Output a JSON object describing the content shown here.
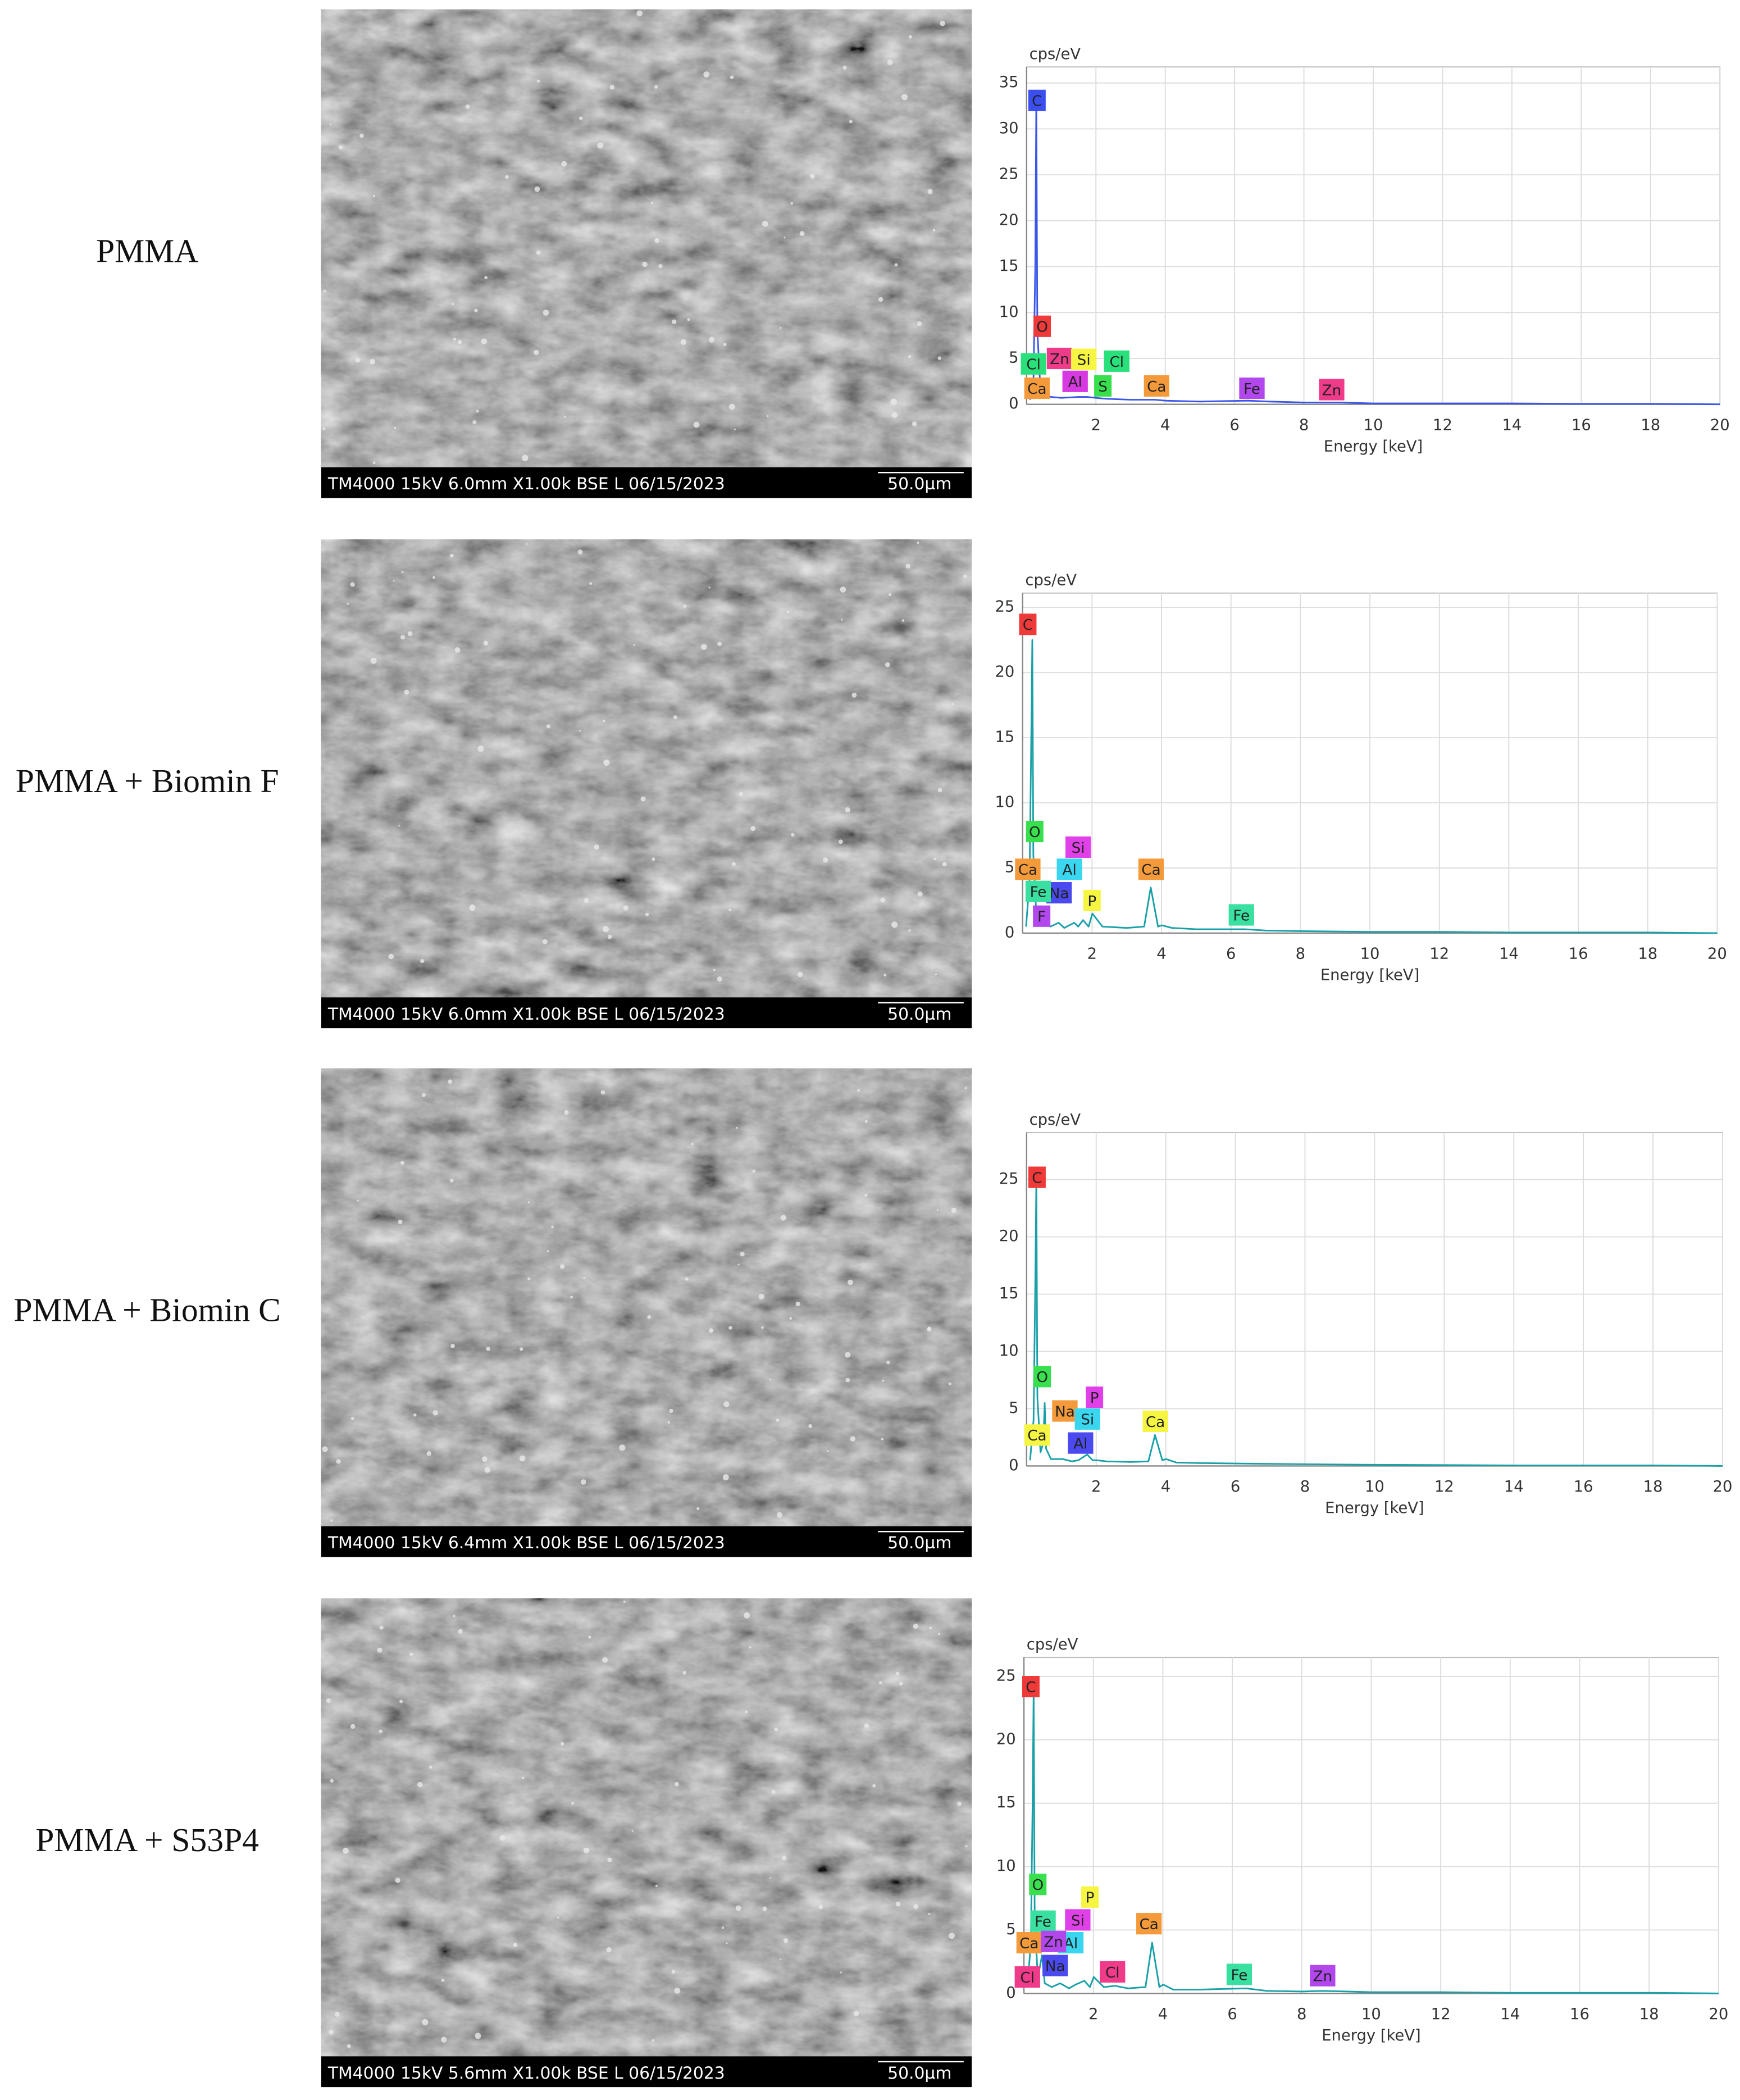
{
  "rows": [
    {
      "label": "PMMA",
      "sem_info": "TM4000 15kV 6.0mm X1.00k BSE L 06/15/2023",
      "scale": "50.0µm"
    },
    {
      "label": "PMMA + Biomin F",
      "sem_info": "TM4000 15kV 6.0mm X1.00k BSE L 06/15/2023",
      "scale": "50.0µm"
    },
    {
      "label": "PMMA + Biomin C",
      "sem_info": "TM4000 15kV 6.4mm X1.00k BSE L 06/15/2023",
      "scale": "50.0µm"
    },
    {
      "label": "PMMA + S53P4",
      "sem_info": "TM4000 15kV 5.6mm X1.00k BSE L 06/15/2023",
      "scale": "50.0µm"
    }
  ],
  "chart_data": [
    {
      "type": "line",
      "y_label": "cps/eV",
      "x_label": "Energy [keV]",
      "xlim": [
        0,
        20
      ],
      "xticks": [
        2,
        4,
        6,
        8,
        10,
        12,
        14,
        16,
        18,
        20
      ],
      "ylim": [
        0,
        36.75
      ],
      "yticks": [
        0,
        5,
        10,
        15,
        20,
        25,
        30,
        35
      ],
      "grid": true,
      "x": [
        0.1,
        0.2,
        0.25,
        0.28,
        0.31,
        0.4,
        0.5,
        0.53,
        0.57,
        0.7,
        1.0,
        1.49,
        1.74,
        2.0,
        2.3,
        3.0,
        3.7,
        4.0,
        5,
        6.4,
        7,
        8,
        9,
        10,
        12,
        14,
        16,
        18,
        20
      ],
      "series": [
        {
          "color": "#3a55e8",
          "values": [
            0.5,
            3,
            15,
            33,
            8,
            1.5,
            1,
            1.5,
            1,
            0.8,
            0.7,
            0.8,
            0.8,
            0.7,
            0.6,
            0.5,
            0.5,
            0.4,
            0.3,
            0.4,
            0.3,
            0.2,
            0.2,
            0.1,
            0.1,
            0.1,
            0.05,
            0.05,
            0
          ]
        }
      ],
      "peak_labels": [
        {
          "label": "C",
          "x": 0.3,
          "y": 33.1,
          "color": "#3b4ff0"
        },
        {
          "label": "O",
          "x": 0.45,
          "y": 8.5,
          "color": "#f03a3a"
        },
        {
          "label": "Cl",
          "x": 0.2,
          "y": 4.4,
          "color": "#29e07a"
        },
        {
          "label": "Zn",
          "x": 0.95,
          "y": 5.0,
          "color": "#f03a8a"
        },
        {
          "label": "Si",
          "x": 1.65,
          "y": 4.9,
          "color": "#f5f542"
        },
        {
          "label": "Cl",
          "x": 2.6,
          "y": 4.7,
          "color": "#29e07a"
        },
        {
          "label": "Al",
          "x": 1.4,
          "y": 2.5,
          "color": "#d63ae0"
        },
        {
          "label": "S",
          "x": 2.2,
          "y": 2.0,
          "color": "#37e04c"
        },
        {
          "label": "Ca",
          "x": 0.3,
          "y": 1.75,
          "color": "#f59a3a"
        },
        {
          "label": "Ca",
          "x": 3.75,
          "y": 2.0,
          "color": "#f59a3a"
        },
        {
          "label": "Fe",
          "x": 6.5,
          "y": 1.75,
          "color": "#b347ee"
        },
        {
          "label": "Zn",
          "x": 8.8,
          "y": 1.6,
          "color": "#f03a8a"
        }
      ]
    },
    {
      "type": "line",
      "y_label": "cps/eV",
      "x_label": "Energy [keV]",
      "xlim": [
        0,
        20
      ],
      "xticks": [
        2,
        4,
        6,
        8,
        10,
        12,
        14,
        16,
        18,
        20
      ],
      "ylim": [
        0,
        26.1
      ],
      "yticks": [
        0,
        5,
        10,
        15,
        20,
        25
      ],
      "grid": true,
      "x": [
        0.1,
        0.2,
        0.25,
        0.28,
        0.31,
        0.4,
        0.52,
        0.6,
        0.68,
        0.8,
        1.04,
        1.2,
        1.49,
        1.6,
        1.74,
        1.9,
        2.01,
        2.3,
        3.0,
        3.5,
        3.69,
        3.9,
        4.01,
        4.3,
        5,
        6.4,
        7,
        8,
        10,
        12,
        14,
        16,
        18,
        20
      ],
      "series": [
        {
          "color": "#18a0a8",
          "values": [
            0.5,
            4,
            15,
            22.5,
            6,
            1.2,
            2,
            0.8,
            0.9,
            0.5,
            0.8,
            0.4,
            0.8,
            0.5,
            1.0,
            0.5,
            1.5,
            0.5,
            0.4,
            0.5,
            3.5,
            0.5,
            0.6,
            0.4,
            0.3,
            0.3,
            0.2,
            0.15,
            0.1,
            0.1,
            0.05,
            0.05,
            0.05,
            0
          ]
        }
      ],
      "peak_labels": [
        {
          "label": "C",
          "x": 0.15,
          "y": 23.7,
          "color": "#f03a3a"
        },
        {
          "label": "O",
          "x": 0.35,
          "y": 7.8,
          "color": "#37e04c"
        },
        {
          "label": "Ca",
          "x": 0.15,
          "y": 4.9,
          "color": "#f59a3a"
        },
        {
          "label": "Si",
          "x": 1.6,
          "y": 6.6,
          "color": "#e040e8"
        },
        {
          "label": "Al",
          "x": 1.35,
          "y": 4.9,
          "color": "#3ad6f0"
        },
        {
          "label": "Na",
          "x": 1.05,
          "y": 3.1,
          "color": "#4a4af0"
        },
        {
          "label": "Fe",
          "x": 0.45,
          "y": 3.2,
          "color": "#3ae0a0"
        },
        {
          "label": "P",
          "x": 2.0,
          "y": 2.5,
          "color": "#f5f542"
        },
        {
          "label": "F",
          "x": 0.55,
          "y": 1.3,
          "color": "#b347ee"
        },
        {
          "label": "Ca",
          "x": 3.7,
          "y": 4.9,
          "color": "#f59a3a"
        },
        {
          "label": "Fe",
          "x": 6.3,
          "y": 1.4,
          "color": "#3ae0a0"
        }
      ]
    },
    {
      "type": "line",
      "y_label": "cps/eV",
      "x_label": "Energy [keV]",
      "xlim": [
        0,
        20
      ],
      "xticks": [
        2,
        4,
        6,
        8,
        10,
        12,
        14,
        16,
        18,
        20
      ],
      "ylim": [
        0,
        29.1
      ],
      "yticks": [
        0,
        5,
        10,
        15,
        20,
        25
      ],
      "grid": true,
      "x": [
        0.1,
        0.2,
        0.25,
        0.28,
        0.31,
        0.4,
        0.48,
        0.52,
        0.56,
        0.7,
        1.04,
        1.3,
        1.49,
        1.74,
        1.9,
        2.01,
        2.3,
        3.0,
        3.5,
        3.69,
        3.9,
        4.01,
        4.3,
        5,
        6.4,
        8,
        10,
        12,
        14,
        16,
        18,
        20
      ],
      "series": [
        {
          "color": "#18a0a8",
          "values": [
            0.5,
            4,
            16,
            25,
            6,
            1.2,
            2,
            5.5,
            1.5,
            0.6,
            0.6,
            0.4,
            0.5,
            1.0,
            0.5,
            0.5,
            0.4,
            0.35,
            0.4,
            2.7,
            0.5,
            0.6,
            0.3,
            0.25,
            0.2,
            0.15,
            0.1,
            0.08,
            0.05,
            0.05,
            0.05,
            0
          ]
        }
      ],
      "peak_labels": [
        {
          "label": "C",
          "x": 0.3,
          "y": 25.2,
          "color": "#f03a3a"
        },
        {
          "label": "O",
          "x": 0.45,
          "y": 7.8,
          "color": "#37e04c"
        },
        {
          "label": "Na",
          "x": 1.1,
          "y": 4.8,
          "color": "#f59a3a"
        },
        {
          "label": "P",
          "x": 1.95,
          "y": 6.0,
          "color": "#e040e8"
        },
        {
          "label": "Si",
          "x": 1.75,
          "y": 4.1,
          "color": "#3ad6f0"
        },
        {
          "label": "Ca",
          "x": 0.3,
          "y": 2.7,
          "color": "#f5f542"
        },
        {
          "label": "Al",
          "x": 1.55,
          "y": 2.0,
          "color": "#4a4af0"
        },
        {
          "label": "Ca",
          "x": 3.7,
          "y": 3.9,
          "color": "#f5f542"
        }
      ]
    },
    {
      "type": "line",
      "y_label": "cps/eV",
      "x_label": "Energy [keV]",
      "xlim": [
        0,
        20
      ],
      "xticks": [
        2,
        4,
        6,
        8,
        10,
        12,
        14,
        16,
        18,
        20
      ],
      "ylim": [
        0,
        26.5
      ],
      "yticks": [
        0,
        5,
        10,
        15,
        20,
        25
      ],
      "grid": true,
      "x": [
        0.1,
        0.2,
        0.25,
        0.28,
        0.31,
        0.4,
        0.52,
        0.6,
        0.8,
        1.04,
        1.3,
        1.49,
        1.74,
        1.9,
        2.01,
        2.3,
        2.62,
        3.0,
        3.5,
        3.69,
        3.9,
        4.01,
        4.3,
        5,
        6.4,
        7,
        8,
        8.6,
        10,
        12,
        14,
        16,
        18,
        20
      ],
      "series": [
        {
          "color": "#18a0a8",
          "values": [
            0.5,
            4,
            15,
            24,
            6,
            1.2,
            3,
            0.8,
            0.5,
            0.8,
            0.4,
            0.7,
            1.0,
            0.5,
            1.3,
            0.5,
            0.6,
            0.4,
            0.5,
            4.0,
            0.5,
            0.7,
            0.3,
            0.3,
            0.4,
            0.2,
            0.15,
            0.2,
            0.1,
            0.1,
            0.05,
            0.05,
            0.05,
            0
          ]
        }
      ],
      "peak_labels": [
        {
          "label": "C",
          "x": 0.2,
          "y": 24.2,
          "color": "#f03a3a"
        },
        {
          "label": "O",
          "x": 0.4,
          "y": 8.6,
          "color": "#37e04c"
        },
        {
          "label": "P",
          "x": 1.9,
          "y": 7.6,
          "color": "#f5f542"
        },
        {
          "label": "Fe",
          "x": 0.55,
          "y": 5.7,
          "color": "#3ae0a0"
        },
        {
          "label": "Si",
          "x": 1.55,
          "y": 5.8,
          "color": "#e040e8"
        },
        {
          "label": "Ca",
          "x": 0.15,
          "y": 4.0,
          "color": "#f59a3a"
        },
        {
          "label": "Al",
          "x": 1.35,
          "y": 4.0,
          "color": "#3ad6f0"
        },
        {
          "label": "Zn",
          "x": 0.85,
          "y": 4.1,
          "color": "#b347ee"
        },
        {
          "label": "Ca",
          "x": 3.6,
          "y": 5.5,
          "color": "#f59a3a"
        },
        {
          "label": "Na",
          "x": 0.9,
          "y": 2.2,
          "color": "#4a4af0"
        },
        {
          "label": "Cl",
          "x": 0.1,
          "y": 1.3,
          "color": "#f03a8a"
        },
        {
          "label": "Cl",
          "x": 2.55,
          "y": 1.7,
          "color": "#f03a8a"
        },
        {
          "label": "Fe",
          "x": 6.2,
          "y": 1.5,
          "color": "#3ae0a0"
        },
        {
          "label": "Zn",
          "x": 8.6,
          "y": 1.4,
          "color": "#b347ee"
        }
      ]
    }
  ]
}
